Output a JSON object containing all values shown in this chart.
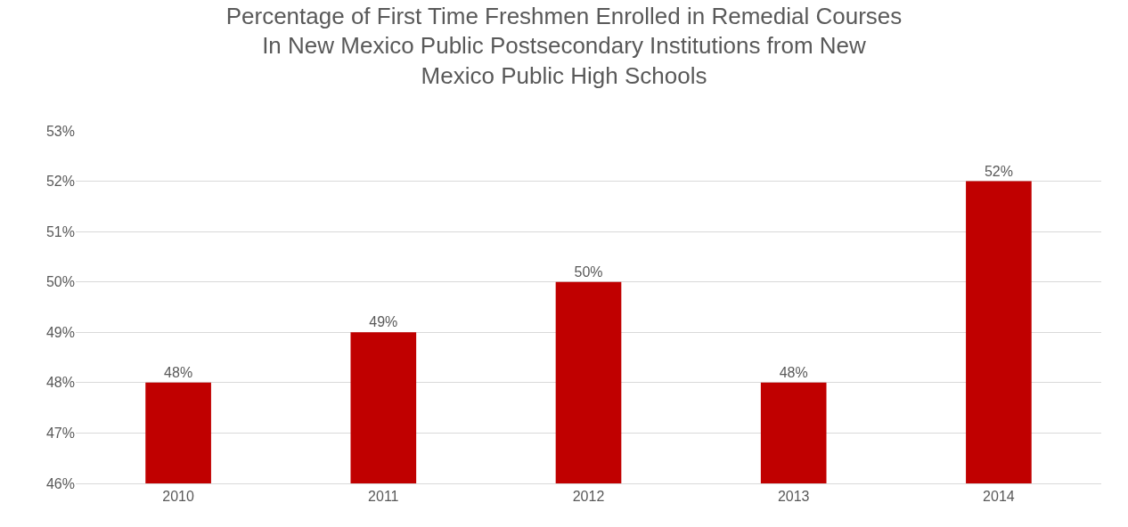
{
  "chart_data": {
    "type": "bar",
    "title": "Percentage of First Time Freshmen Enrolled in Remedial Courses\nIn New Mexico Public Postsecondary Institutions from New\nMexico Public High Schools",
    "categories": [
      "2010",
      "2011",
      "2012",
      "2013",
      "2014"
    ],
    "values": [
      48,
      49,
      50,
      48,
      52
    ],
    "value_labels": [
      "48%",
      "49%",
      "50%",
      "48%",
      "52%"
    ],
    "color": "#c00000",
    "ylim": [
      46,
      53
    ],
    "yticks": [
      {
        "value": 46,
        "label": "46%"
      },
      {
        "value": 47,
        "label": "47%"
      },
      {
        "value": 48,
        "label": "48%"
      },
      {
        "value": 49,
        "label": "49%"
      },
      {
        "value": 50,
        "label": "50%"
      },
      {
        "value": 51,
        "label": "51%"
      },
      {
        "value": 52,
        "label": "52%"
      },
      {
        "value": 53,
        "label": "53%"
      }
    ],
    "grid": "y"
  }
}
